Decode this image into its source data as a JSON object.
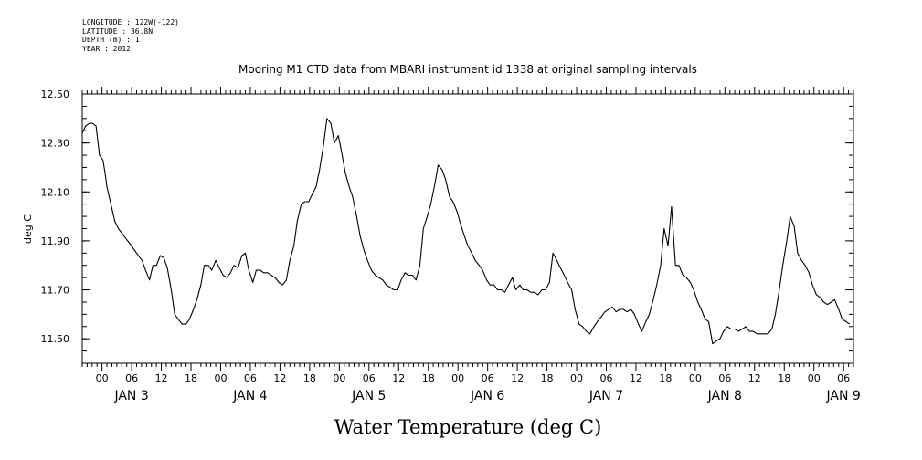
{
  "header": {
    "lines": [
      "LONGITUDE : 122W(-122)",
      "LATITUDE : 36.8N",
      "DEPTH (m) : 1",
      "YEAR : 2012"
    ]
  },
  "chart_data": {
    "type": "line",
    "title": "Mooring M1 CTD data from MBARI instrument id 1338 at original sampling intervals",
    "xlabel": "Water Temperature (deg C)",
    "ylabel": "deg C",
    "ylim": [
      11.4,
      12.5
    ],
    "xlim_hours": [
      -4.0,
      152.0
    ],
    "x_unit": "hours after 00:00 JAN 3 2012",
    "yticks": [
      "12.50",
      "12.30",
      "12.10",
      "11.90",
      "11.70",
      "11.50"
    ],
    "ytick_values": [
      12.5,
      12.3,
      12.1,
      11.9,
      11.7,
      11.5
    ],
    "hour_tick_labels": [
      "00",
      "06",
      "12",
      "18"
    ],
    "day_labels": [
      "JAN 3",
      "JAN 4",
      "JAN 5",
      "JAN 6",
      "JAN 7",
      "JAN 8",
      "JAN 9"
    ],
    "grid": false,
    "line_color": "#000000",
    "x": [
      -4.0,
      -3.3,
      -2.6,
      -1.9,
      -1.2,
      -0.5,
      0.2,
      0.6,
      1.0,
      1.8,
      2.6,
      3.3,
      4.1,
      4.8,
      5.6,
      6.3,
      7.0,
      7.7,
      8.1,
      8.8,
      9.6,
      10.3,
      11.0,
      11.8,
      12.5,
      13.2,
      14.0,
      14.7,
      15.4,
      16.2,
      17.0,
      17.7,
      18.5,
      19.2,
      20.0,
      20.7,
      21.5,
      22.2,
      23.0,
      23.7,
      24.5,
      25.2,
      26.0,
      26.7,
      27.5,
      28.3,
      29.0,
      29.7,
      30.5,
      31.2,
      32.0,
      32.7,
      33.5,
      34.2,
      35.0,
      35.8,
      36.5,
      37.3,
      38.0,
      38.8,
      39.5,
      40.3,
      41.0,
      41.8,
      42.5,
      43.3,
      44.0,
      44.8,
      45.5,
      46.3,
      47.0,
      47.8,
      48.5,
      49.2,
      50.0,
      50.7,
      51.5,
      52.2,
      53.0,
      53.7,
      54.5,
      55.3,
      56.0,
      56.8,
      57.5,
      58.3,
      59.0,
      59.8,
      60.5,
      61.3,
      62.0,
      62.8,
      63.5,
      64.3,
      65.0,
      65.8,
      66.5,
      67.3,
      68.0,
      68.8,
      69.5,
      70.3,
      71.0,
      71.8,
      72.5,
      73.3,
      74.0,
      74.8,
      75.5,
      76.3,
      77.0,
      77.8,
      78.5,
      79.3,
      80.0,
      80.8,
      81.5,
      82.2,
      83.0,
      83.7,
      84.5,
      85.2,
      86.0,
      86.7,
      87.5,
      88.2,
      89.0,
      89.7,
      90.5,
      91.2,
      92.0,
      92.7,
      93.5,
      94.2,
      95.0,
      95.7,
      96.5,
      97.2,
      98.0,
      98.7,
      99.5,
      100.2,
      101.0,
      101.7,
      102.5,
      103.2,
      104.0,
      104.7,
      105.5,
      106.2,
      107.0,
      107.7,
      108.5,
      109.2,
      110.0,
      110.7,
      111.5,
      112.2,
      113.0,
      113.7,
      114.5,
      115.2,
      116.0,
      116.7,
      117.5,
      118.2,
      119.0,
      119.7,
      120.5,
      121.2,
      122.0,
      122.7,
      123.5,
      124.2,
      125.0,
      125.7,
      126.5,
      127.2,
      128.0,
      128.7,
      129.5,
      130.2,
      131.0,
      131.7,
      132.5,
      133.2,
      134.0,
      134.7,
      135.5,
      136.2,
      137.0,
      137.7,
      138.5,
      139.2,
      140.0,
      140.7,
      141.5,
      142.2,
      143.0,
      143.7,
      144.5,
      145.2,
      146.0,
      146.7,
      147.5,
      148.2,
      149.0,
      149.7,
      150.5,
      151.2
    ],
    "values": [
      12.34,
      12.37,
      12.38,
      12.38,
      12.37,
      12.25,
      12.23,
      12.18,
      12.12,
      12.05,
      11.98,
      11.95,
      11.93,
      11.91,
      11.89,
      11.87,
      11.85,
      11.83,
      11.82,
      11.78,
      11.74,
      11.8,
      11.8,
      11.84,
      11.83,
      11.79,
      11.7,
      11.6,
      11.58,
      11.56,
      11.56,
      11.58,
      11.62,
      11.66,
      11.72,
      11.8,
      11.8,
      11.78,
      11.82,
      11.79,
      11.76,
      11.75,
      11.77,
      11.8,
      11.79,
      11.84,
      11.85,
      11.78,
      11.73,
      11.78,
      11.78,
      11.77,
      11.77,
      11.76,
      11.75,
      11.73,
      11.72,
      11.74,
      11.82,
      11.88,
      11.98,
      12.05,
      12.06,
      12.06,
      12.09,
      12.12,
      12.19,
      12.29,
      12.4,
      12.38,
      12.3,
      12.33,
      12.26,
      12.18,
      12.12,
      12.08,
      12.0,
      11.92,
      11.86,
      11.82,
      11.78,
      11.76,
      11.75,
      11.74,
      11.72,
      11.71,
      11.7,
      11.7,
      11.74,
      11.77,
      11.76,
      11.76,
      11.74,
      11.8,
      11.95,
      12.0,
      12.05,
      12.13,
      12.21,
      12.19,
      12.15,
      12.08,
      12.06,
      12.02,
      11.97,
      11.92,
      11.88,
      11.85,
      11.82,
      11.8,
      11.78,
      11.74,
      11.72,
      11.72,
      11.7,
      11.7,
      11.69,
      11.72,
      11.75,
      11.7,
      11.72,
      11.7,
      11.7,
      11.69,
      11.69,
      11.68,
      11.7,
      11.7,
      11.73,
      11.85,
      11.82,
      11.79,
      11.76,
      11.73,
      11.7,
      11.62,
      11.56,
      11.55,
      11.53,
      11.52,
      11.55,
      11.57,
      11.59,
      11.61,
      11.62,
      11.63,
      11.61,
      11.62,
      11.62,
      11.61,
      11.62,
      11.6,
      11.56,
      11.53,
      11.57,
      11.6,
      11.66,
      11.72,
      11.8,
      11.95,
      11.88,
      12.04,
      11.8,
      11.8,
      11.76,
      11.75,
      11.73,
      11.7,
      11.65,
      11.62,
      11.58,
      11.57,
      11.48,
      11.49,
      11.5,
      11.53,
      11.55,
      11.54,
      11.54,
      11.53,
      11.54,
      11.55,
      11.53,
      11.53,
      11.52,
      11.52,
      11.52,
      11.52,
      11.54,
      11.6,
      11.7,
      11.8,
      11.9,
      12.0,
      11.96,
      11.85,
      11.82,
      11.8,
      11.77,
      11.72,
      11.68,
      11.67,
      11.65,
      11.64,
      11.65,
      11.66,
      11.62,
      11.58,
      11.57,
      11.56
    ]
  }
}
